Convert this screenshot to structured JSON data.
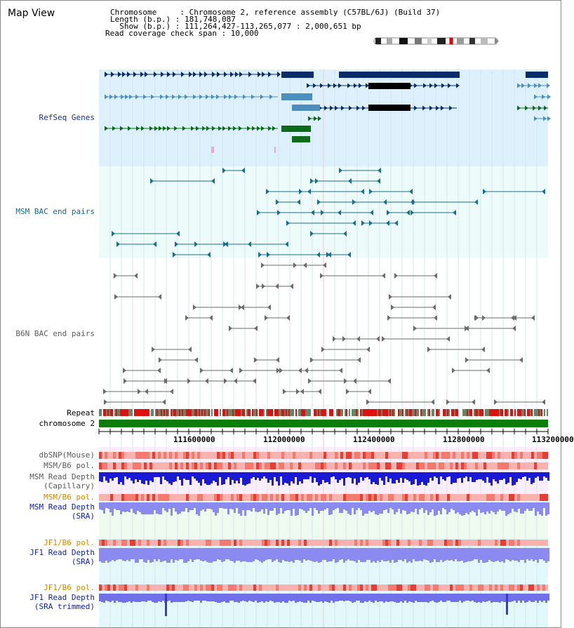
{
  "view_title": "Map View",
  "header": {
    "chromosome_line": "Chromosome     : Chromosome 2, reference assembly (C57BL/6J) (Build 37)",
    "length_line": "Length (b.p.) : 181,748,087",
    "show_line": "  Show (b.p.) : 111,264,427-113,265,077 : 2,000,651 bp",
    "coverage_line": "Read coverage check span : 10,000"
  },
  "tracks": {
    "refseq": "RefSeq Genes",
    "msm_bac": "MSM BAC end pairs",
    "b6n_bac": "B6N BAC end pairs",
    "repeat": "Repeat",
    "chromosome": "chromosome 2",
    "dbsnp": "dbSNP(Mouse)",
    "msm_b6_pol": "MSM/B6 pol.",
    "msm_depth_cap_1": "MSM Read Depth",
    "msm_depth_cap_2": "(Capillary)",
    "msm_b6_pol2": "MSM/B6 pol.",
    "msm_depth_sra_1": "MSM Read Depth",
    "msm_depth_sra_2": "(SRA)",
    "jf1_b6_pol": "JF1/B6 pol.",
    "jf1_depth_sra_1": "JF1 Read Depth",
    "jf1_depth_sra_2": "(SRA)",
    "jf1_b6_pol2": "JF1/B6 pol.",
    "jf1_depth_trim_1": "JF1 Read Depth",
    "jf1_depth_trim_2": "(SRA trimmed)"
  },
  "axis_ticks": [
    "111600000",
    "112000000",
    "112400000",
    "112800000",
    "113200000"
  ],
  "colors": {
    "refseq_bg": "#dcf1fb",
    "bac_bg": "#eefbfb",
    "gene_navy": "#0b2c6b",
    "gene_steel": "#4a8fbd",
    "gene_green": "#0b6b1b",
    "msm_bac": "#16708a",
    "b6n_bac": "#6b6b6b",
    "repeat_red": "#e01010",
    "repeat_gray": "#5f8a6a",
    "chromosome_green": "#0a7d0a",
    "pol_light": "#f9b2ae",
    "pol_dark": "#e83d32",
    "depth_cap": "#1a1ad6",
    "depth_sra": "#8a8af0",
    "depth_trim": "#7070ea"
  }
}
